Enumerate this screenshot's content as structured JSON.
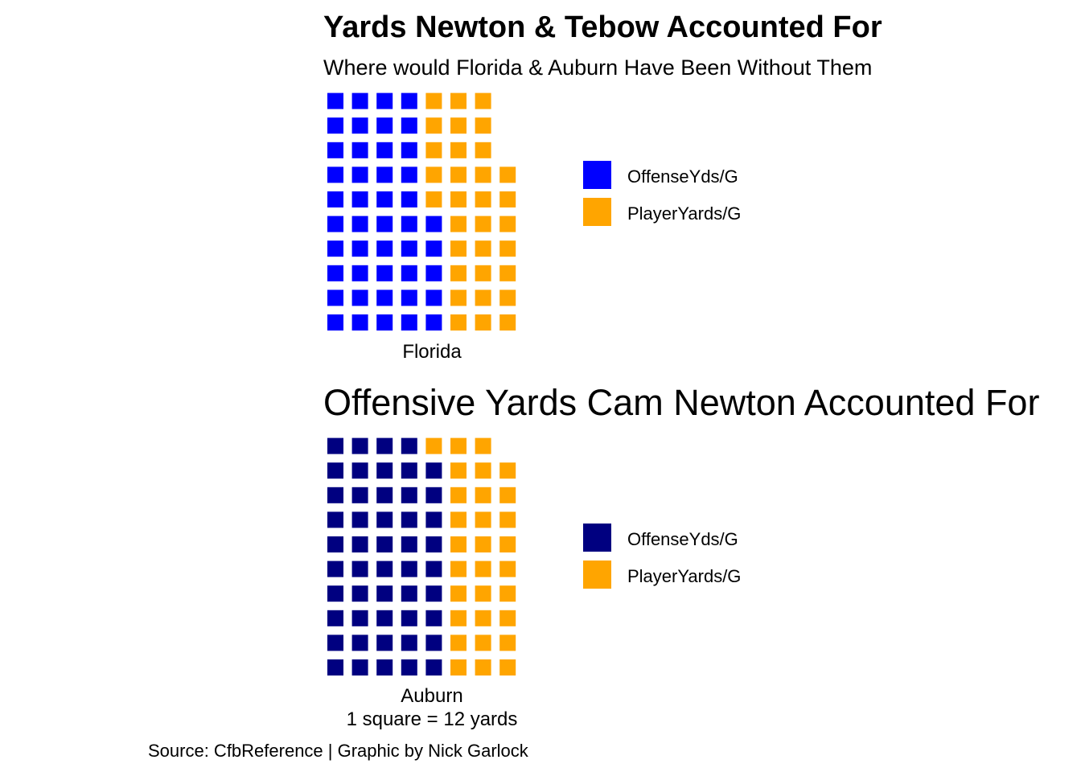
{
  "chart_data": [
    {
      "type": "waffle",
      "title": "Yards Newton & Tebow Accounted For",
      "subtitle": "Where would Florida & Auburn Have Been Without Them",
      "xlabel": "Florida",
      "rows": 10,
      "columns": 8,
      "fill_order": "columns, bottom to top",
      "values": [
        {
          "name": "OffenseYds/G",
          "squares": 45,
          "color": "#0000FF"
        },
        {
          "name": "PlayerYardS/G",
          "squares": 32,
          "color": "#FFA500"
        }
      ],
      "legend": [
        "OffenseYds/G",
        "PlayerYards/G"
      ]
    },
    {
      "type": "waffle",
      "title": "Offensive Yards Cam Newton Accounted For",
      "xlabel": "Auburn",
      "rows": 10,
      "columns": 8,
      "fill_order": "columns, bottom to top",
      "values": [
        {
          "name": "OffenseYds/G",
          "squares": 49,
          "color": "#000080"
        },
        {
          "name": "PlayerYards/G",
          "squares": 30,
          "color": "#FFA500"
        }
      ],
      "legend": [
        "OffenseYds/G",
        "PlayerYards/G"
      ]
    }
  ],
  "scale_note": "1 square = 12 yards",
  "caption": "Source: CfbReference | Graphic by Nick Garlock"
}
